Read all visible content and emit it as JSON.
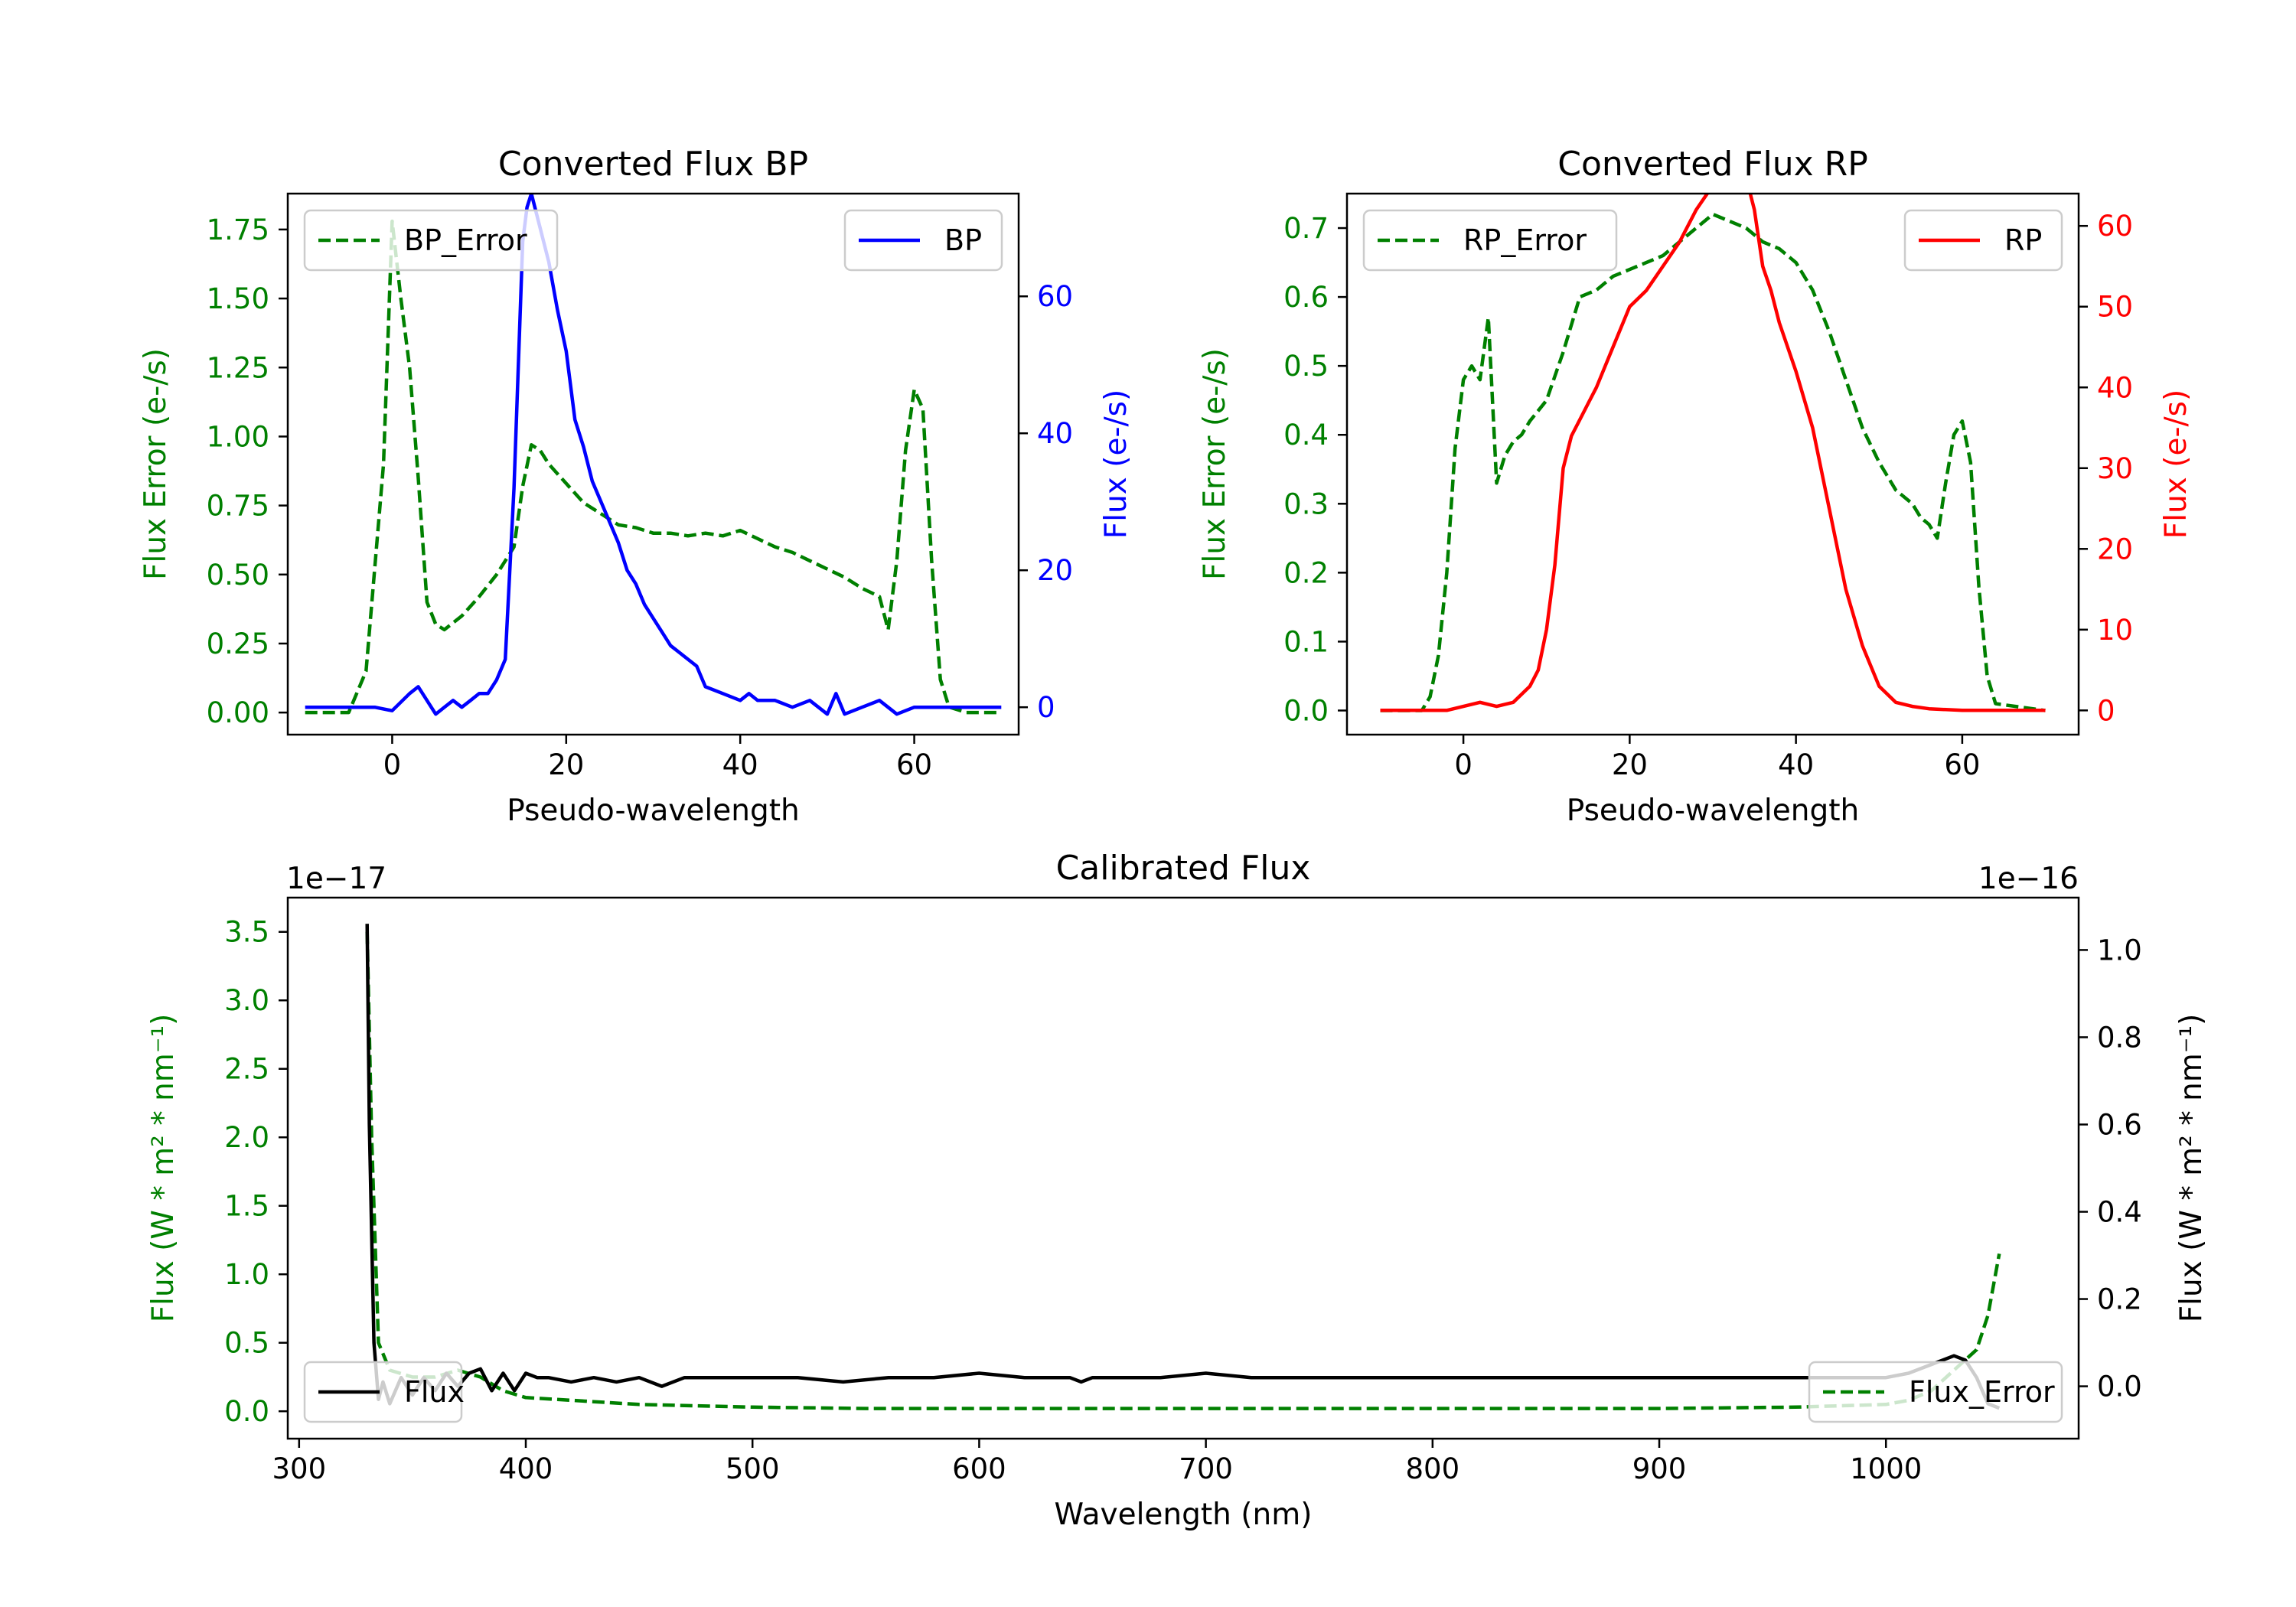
{
  "colors": {
    "bp": "#0000ff",
    "rp": "#ff0000",
    "error": "#008000",
    "flux": "#000000",
    "axis": "#000000"
  },
  "chart_data": [
    {
      "id": "bp",
      "type": "line",
      "title": "Converted Flux BP",
      "xlabel": "Pseudo-wavelength",
      "ylabel_left": "Flux Error (e-/s)",
      "ylabel_right": "Flux (e-/s)",
      "xlim": [
        -12,
        72
      ],
      "xticks": [
        0,
        20,
        40,
        60
      ],
      "ylim_left": [
        -0.08,
        1.88
      ],
      "yticks_left": [
        "0.00",
        "0.25",
        "0.50",
        "0.75",
        "1.00",
        "1.25",
        "1.50",
        "1.75"
      ],
      "ylim_right": [
        -4,
        75
      ],
      "yticks_right": [
        0,
        20,
        40,
        60
      ],
      "legend_left": {
        "label": "BP_Error",
        "position": "upper left"
      },
      "legend_right": {
        "label": "BP",
        "position": "upper right"
      },
      "series": [
        {
          "name": "BP_Error",
          "axis": "left",
          "style": "dashed",
          "color": "#008000",
          "x": [
            -10,
            -5,
            -3,
            -1,
            0,
            1,
            2,
            3,
            4,
            5,
            6,
            8,
            10,
            12,
            14,
            15,
            16,
            17,
            18,
            20,
            22,
            24,
            26,
            28,
            30,
            32,
            34,
            36,
            38,
            40,
            42,
            44,
            46,
            48,
            50,
            52,
            54,
            56,
            57,
            58,
            59,
            60,
            61,
            62,
            63,
            64,
            66,
            70
          ],
          "y": [
            0,
            0,
            0.15,
            0.9,
            1.78,
            1.5,
            1.25,
            0.85,
            0.4,
            0.32,
            0.3,
            0.35,
            0.42,
            0.5,
            0.6,
            0.82,
            0.97,
            0.95,
            0.9,
            0.83,
            0.76,
            0.72,
            0.68,
            0.67,
            0.65,
            0.65,
            0.64,
            0.65,
            0.64,
            0.66,
            0.63,
            0.6,
            0.58,
            0.55,
            0.52,
            0.49,
            0.45,
            0.42,
            0.3,
            0.55,
            0.95,
            1.17,
            1.1,
            0.55,
            0.12,
            0.02,
            0,
            0
          ]
        },
        {
          "name": "BP",
          "axis": "right",
          "style": "solid",
          "color": "#0000ff",
          "x": [
            -10,
            -2,
            0,
            2,
            3,
            4,
            5,
            6,
            7,
            8,
            9,
            10,
            11,
            12,
            13,
            14,
            15,
            15.5,
            16,
            17,
            18,
            19,
            20,
            21,
            22,
            23,
            24,
            25,
            26,
            27,
            28,
            29,
            30,
            31,
            32,
            33,
            34,
            35,
            36,
            38,
            40,
            41,
            42,
            44,
            46,
            48,
            50,
            51,
            52,
            54,
            56,
            58,
            60,
            62,
            65,
            70
          ],
          "y": [
            0,
            0,
            -0.5,
            2,
            3,
            1,
            -1,
            0,
            1,
            0,
            1,
            2,
            2,
            4,
            7,
            32,
            68,
            73,
            75,
            70,
            65,
            58,
            52,
            42,
            38,
            33,
            30,
            27,
            24,
            20,
            18,
            15,
            13,
            11,
            9,
            8,
            7,
            6,
            3,
            2,
            1,
            2,
            1,
            1,
            0,
            1,
            -1,
            2,
            -1,
            0,
            1,
            -1,
            0,
            0,
            0,
            0
          ]
        }
      ]
    },
    {
      "id": "rp",
      "type": "line",
      "title": "Converted Flux RP",
      "xlabel": "Pseudo-wavelength",
      "ylabel_left": "Flux Error (e-/s)",
      "ylabel_right": "Flux (e-/s)",
      "xlim": [
        -14,
        74
      ],
      "xticks": [
        0,
        20,
        40,
        60
      ],
      "ylim_left": [
        -0.035,
        0.75
      ],
      "yticks_left": [
        "0.0",
        "0.1",
        "0.2",
        "0.3",
        "0.4",
        "0.5",
        "0.6",
        "0.7"
      ],
      "ylim_right": [
        -3,
        64
      ],
      "yticks_right": [
        0,
        10,
        20,
        30,
        40,
        50,
        60
      ],
      "legend_left": {
        "label": "RP_Error",
        "position": "upper left"
      },
      "legend_right": {
        "label": "RP",
        "position": "upper right"
      },
      "series": [
        {
          "name": "RP_Error",
          "axis": "left",
          "style": "dashed",
          "color": "#008000",
          "x": [
            -10,
            -5,
            -4,
            -3,
            -2,
            -1,
            0,
            1,
            2,
            3,
            4,
            5,
            6,
            7,
            8,
            10,
            12,
            14,
            16,
            18,
            20,
            22,
            24,
            26,
            28,
            30,
            32,
            34,
            36,
            38,
            40,
            42,
            44,
            46,
            48,
            50,
            52,
            54,
            55,
            56,
            57,
            58,
            59,
            60,
            61,
            62,
            63,
            64,
            70
          ],
          "y": [
            0,
            0,
            0.02,
            0.08,
            0.2,
            0.38,
            0.48,
            0.5,
            0.48,
            0.57,
            0.33,
            0.37,
            0.39,
            0.4,
            0.42,
            0.45,
            0.52,
            0.6,
            0.61,
            0.63,
            0.64,
            0.65,
            0.66,
            0.68,
            0.7,
            0.72,
            0.71,
            0.7,
            0.68,
            0.67,
            0.65,
            0.61,
            0.55,
            0.48,
            0.41,
            0.36,
            0.32,
            0.3,
            0.28,
            0.27,
            0.25,
            0.33,
            0.4,
            0.42,
            0.36,
            0.18,
            0.05,
            0.01,
            0
          ]
        },
        {
          "name": "RP",
          "axis": "right",
          "style": "solid",
          "color": "#ff0000",
          "x": [
            -10,
            -2,
            0,
            2,
            4,
            6,
            8,
            9,
            10,
            11,
            12,
            13,
            14,
            15,
            16,
            18,
            20,
            22,
            24,
            26,
            28,
            30,
            31,
            32,
            33,
            34,
            35,
            36,
            37,
            38,
            40,
            42,
            44,
            46,
            48,
            50,
            52,
            54,
            56,
            60,
            70
          ],
          "y": [
            0,
            0,
            0.5,
            1,
            0.5,
            1,
            3,
            5,
            10,
            18,
            30,
            34,
            36,
            38,
            40,
            45,
            50,
            52,
            55,
            58,
            62,
            65,
            67,
            68,
            67,
            66,
            62,
            55,
            52,
            48,
            42,
            35,
            25,
            15,
            8,
            3,
            1,
            0.5,
            0.2,
            0,
            0
          ]
        }
      ]
    },
    {
      "id": "calibrated",
      "type": "line",
      "title": "Calibrated Flux",
      "xlabel": "Wavelength (nm)",
      "ylabel_left": "Flux (W * m² * nm⁻¹)",
      "ylabel_right": "Flux (W * m² * nm⁻¹)",
      "offset_left": "1e−17",
      "offset_right": "1e−16",
      "xlim": [
        295,
        1085
      ],
      "xticks": [
        300,
        400,
        500,
        600,
        700,
        800,
        900,
        1000
      ],
      "ylim_left": [
        -0.2,
        3.75
      ],
      "yticks_left": [
        "0.0",
        "0.5",
        "1.0",
        "1.5",
        "2.0",
        "2.5",
        "3.0",
        "3.5"
      ],
      "ylim_right": [
        -0.12,
        1.12
      ],
      "yticks_right": [
        "0.0",
        "0.2",
        "0.4",
        "0.6",
        "0.8",
        "1.0"
      ],
      "legend_left": {
        "label": "Flux",
        "position": "lower left"
      },
      "legend_right": {
        "label": "Flux_Error",
        "position": "lower right"
      },
      "series": [
        {
          "name": "Flux_Error",
          "axis": "left",
          "style": "dashed",
          "color": "#008000",
          "x": [
            330,
            332,
            335,
            340,
            350,
            360,
            370,
            380,
            390,
            400,
            420,
            450,
            500,
            550,
            600,
            640,
            700,
            800,
            900,
            960,
            1000,
            1010,
            1020,
            1030,
            1040,
            1045,
            1050
          ],
          "y": [
            3.5,
            2.0,
            0.5,
            0.3,
            0.25,
            0.25,
            0.3,
            0.25,
            0.15,
            0.1,
            0.08,
            0.05,
            0.03,
            0.02,
            0.02,
            0.02,
            0.02,
            0.02,
            0.02,
            0.03,
            0.05,
            0.08,
            0.15,
            0.3,
            0.45,
            0.7,
            1.15
          ]
        },
        {
          "name": "Flux",
          "axis": "right",
          "style": "solid",
          "color": "#000000",
          "x": [
            330,
            331,
            333,
            335,
            337,
            340,
            345,
            350,
            355,
            360,
            365,
            370,
            375,
            380,
            385,
            390,
            395,
            400,
            405,
            410,
            420,
            430,
            440,
            450,
            460,
            470,
            480,
            500,
            520,
            540,
            560,
            580,
            600,
            620,
            640,
            645,
            650,
            660,
            670,
            680,
            700,
            720,
            740,
            760,
            780,
            800,
            820,
            840,
            860,
            880,
            900,
            920,
            940,
            960,
            980,
            1000,
            1010,
            1020,
            1030,
            1035,
            1040,
            1045,
            1050
          ],
          "y": [
            1.06,
            0.6,
            0.1,
            -0.03,
            0.01,
            -0.04,
            0.02,
            -0.02,
            0.02,
            -0.01,
            0.03,
            0.0,
            0.03,
            0.04,
            -0.01,
            0.03,
            -0.01,
            0.03,
            0.02,
            0.02,
            0.01,
            0.02,
            0.01,
            0.02,
            0.0,
            0.02,
            0.02,
            0.02,
            0.02,
            0.01,
            0.02,
            0.02,
            0.03,
            0.02,
            0.02,
            0.01,
            0.02,
            0.02,
            0.02,
            0.02,
            0.03,
            0.02,
            0.02,
            0.02,
            0.02,
            0.02,
            0.02,
            0.02,
            0.02,
            0.02,
            0.02,
            0.02,
            0.02,
            0.02,
            0.02,
            0.02,
            0.03,
            0.05,
            0.07,
            0.06,
            0.02,
            -0.04,
            -0.05
          ]
        }
      ]
    }
  ]
}
